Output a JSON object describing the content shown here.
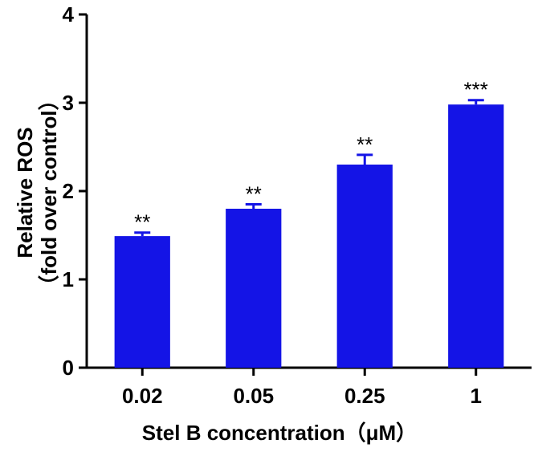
{
  "chart_data": {
    "type": "bar",
    "title": "",
    "xlabel": "Stel B concentration（μM）",
    "ylabel": "Relative ROS",
    "ylabel_sub": "（fold over control）",
    "categories": [
      "0.02",
      "0.05",
      "0.25",
      "1"
    ],
    "values": [
      1.49,
      1.8,
      2.3,
      2.98
    ],
    "errors": [
      0.04,
      0.05,
      0.11,
      0.05
    ],
    "significance": [
      "**",
      "**",
      "**",
      "***"
    ],
    "ylim": [
      0,
      4
    ],
    "yticks": [
      "0",
      "1",
      "2",
      "3",
      "4"
    ],
    "bar_color": "#1414e6",
    "grid": false
  }
}
